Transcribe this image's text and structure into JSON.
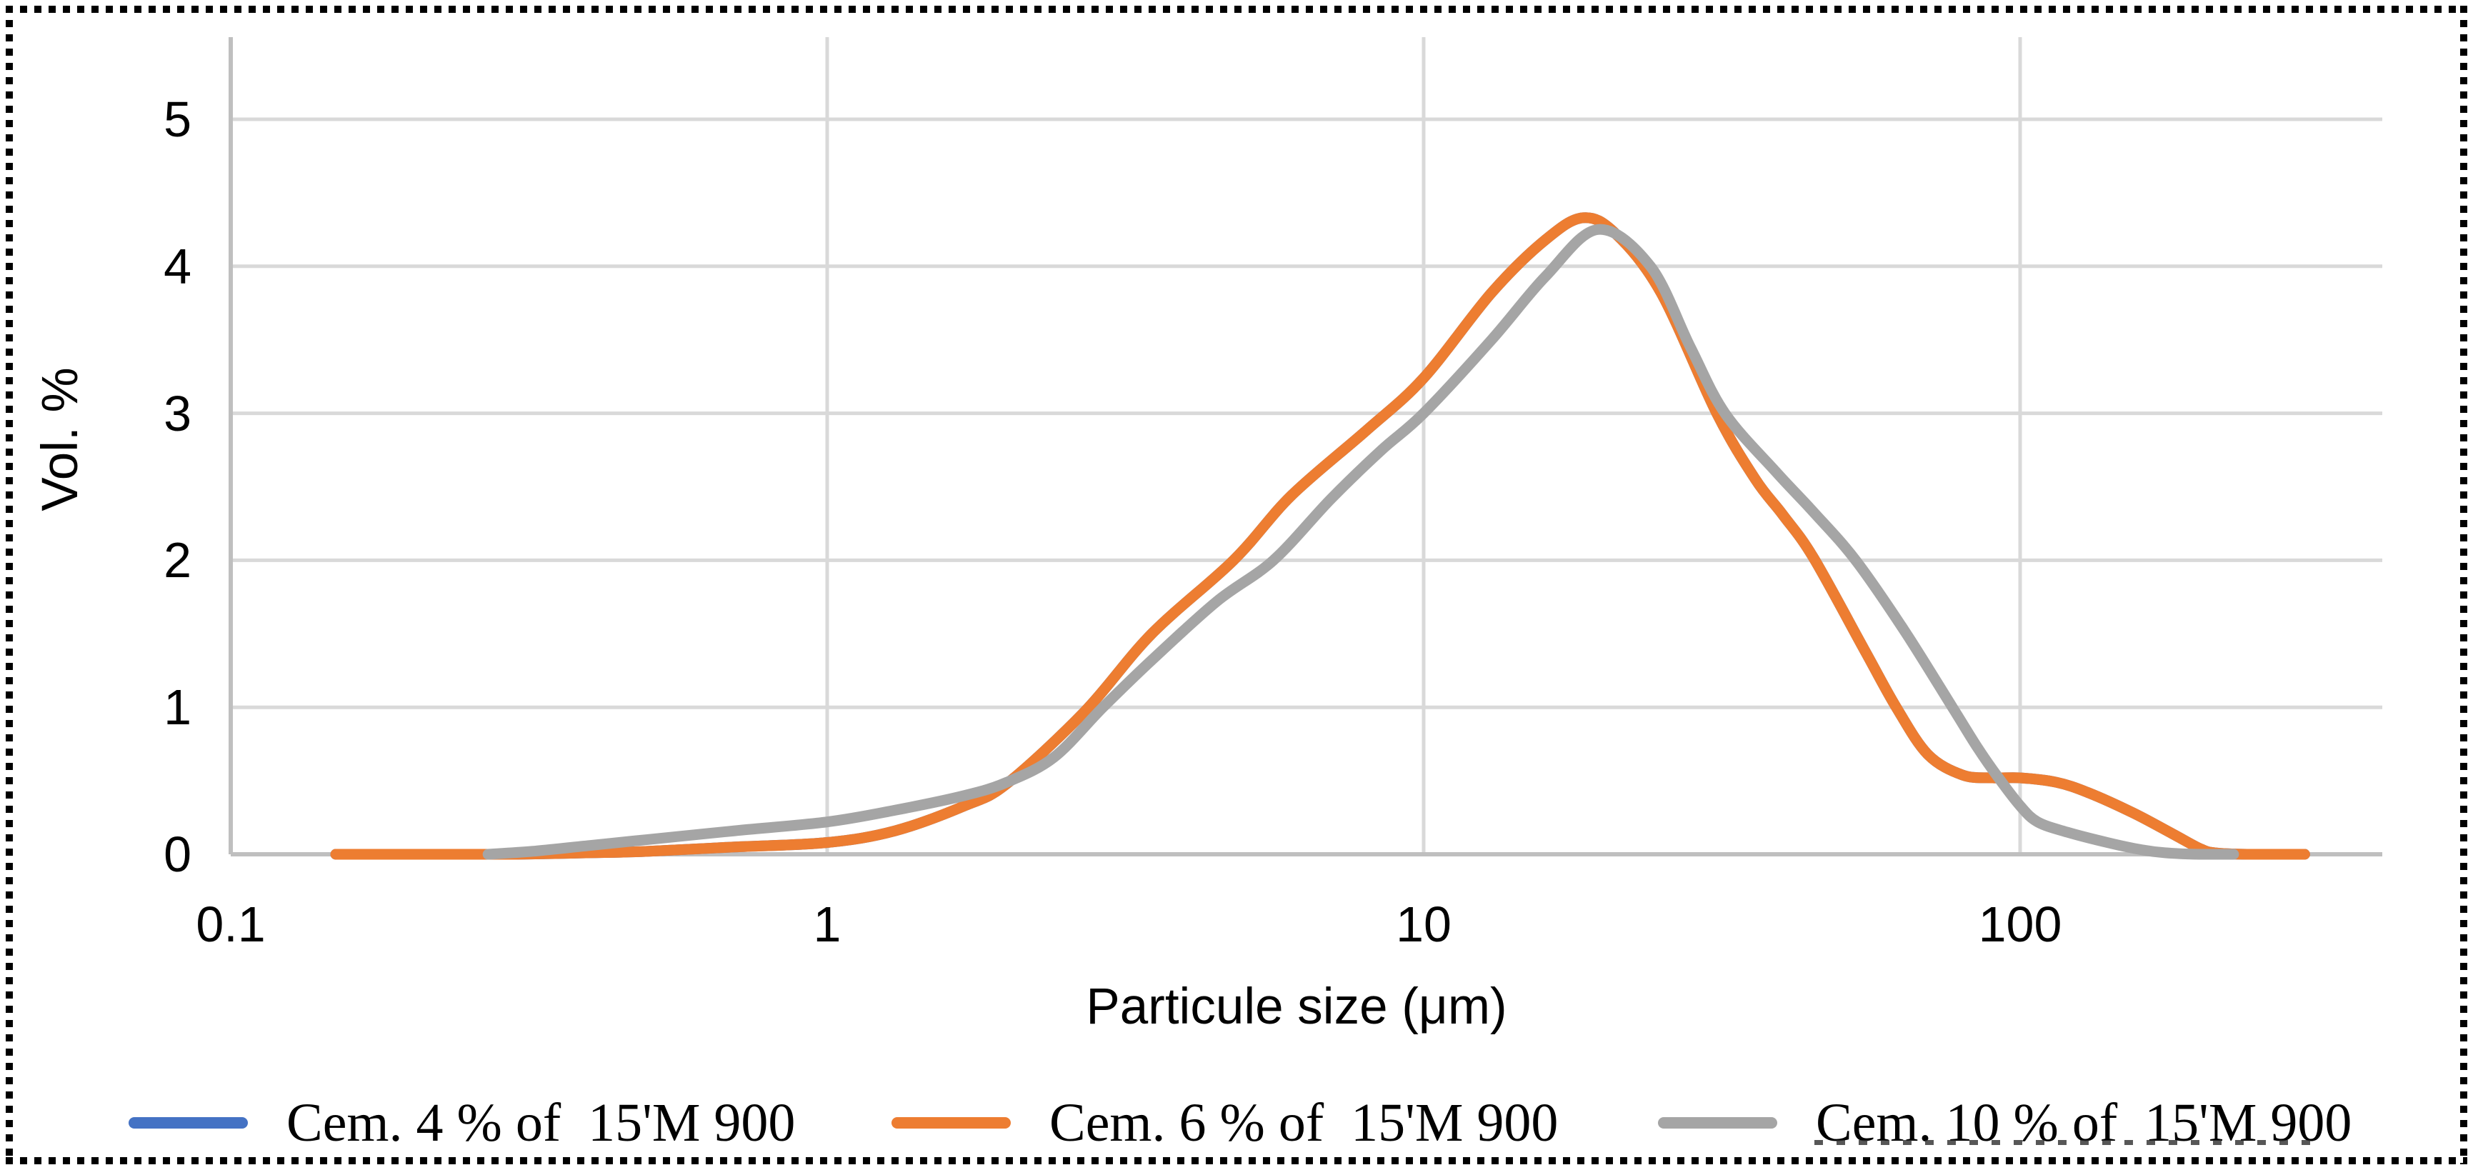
{
  "figure": {
    "y_axis_title": "Vol. %",
    "x_axis_title": "Particule size (μm)",
    "y_tick_labels": [
      "0",
      "1",
      "2",
      "3",
      "4",
      "5"
    ],
    "x_tick_labels": [
      "0.1",
      "1",
      "10",
      "100"
    ],
    "legend": [
      {
        "label": "Cem. 4 % of  15'M 900",
        "color": "#4472C4"
      },
      {
        "label": "Cem. 6 % of  15'M 900",
        "color": "#ED7D31"
      },
      {
        "label": "Cem. 10 % of  15'M 900",
        "color": "#A5A5A5"
      }
    ]
  },
  "chart_data": {
    "type": "line",
    "title": "",
    "xlabel": "Particule size (μm)",
    "ylabel": "Vol. %",
    "x_scale": "log",
    "xlim": [
      0.1,
      400
    ],
    "ylim": [
      0,
      5.6
    ],
    "x_ticks": [
      0.1,
      1,
      10,
      100
    ],
    "y_ticks": [
      0,
      1,
      2,
      3,
      4,
      5
    ],
    "grid": true,
    "legend_position": "bottom",
    "colors": {
      "gridline": "#D9D9D9",
      "axis_line": "#BFBFBF",
      "text": "#000000"
    },
    "series": [
      {
        "name": "Cem. 4 % of 15'M 900",
        "color": "#4472C4",
        "note": "coincides with Cem. 6 % curve and is fully hidden beneath it",
        "points": [
          [
            0.15,
            0
          ],
          [
            0.2,
            0
          ],
          [
            0.25,
            0
          ],
          [
            0.3,
            0
          ],
          [
            0.4,
            0.01
          ],
          [
            0.5,
            0.02
          ],
          [
            0.7,
            0.05
          ],
          [
            1,
            0.08
          ],
          [
            1.3,
            0.16
          ],
          [
            1.7,
            0.33
          ],
          [
            2,
            0.48
          ],
          [
            2.7,
            0.97
          ],
          [
            3.5,
            1.5
          ],
          [
            4.8,
            2.0
          ],
          [
            6,
            2.44
          ],
          [
            8,
            2.88
          ],
          [
            10,
            3.24
          ],
          [
            13,
            3.82
          ],
          [
            16,
            4.18
          ],
          [
            18.5,
            4.33
          ],
          [
            21,
            4.22
          ],
          [
            25,
            3.82
          ],
          [
            31,
            3.0
          ],
          [
            36,
            2.55
          ],
          [
            40,
            2.31
          ],
          [
            45,
            2.02
          ],
          [
            55,
            1.38
          ],
          [
            62,
            1.0
          ],
          [
            70,
            0.68
          ],
          [
            80,
            0.54
          ],
          [
            90,
            0.52
          ],
          [
            100,
            0.52
          ],
          [
            115,
            0.49
          ],
          [
            130,
            0.42
          ],
          [
            155,
            0.28
          ],
          [
            180,
            0.14
          ],
          [
            200,
            0.04
          ],
          [
            212,
            0.01
          ],
          [
            240,
            0
          ],
          [
            300,
            0
          ]
        ]
      },
      {
        "name": "Cem. 6 % of 15'M 900",
        "color": "#ED7D31",
        "points": [
          [
            0.15,
            0
          ],
          [
            0.2,
            0
          ],
          [
            0.25,
            0
          ],
          [
            0.3,
            0
          ],
          [
            0.4,
            0.01
          ],
          [
            0.5,
            0.02
          ],
          [
            0.7,
            0.05
          ],
          [
            1,
            0.08
          ],
          [
            1.3,
            0.16
          ],
          [
            1.7,
            0.33
          ],
          [
            2,
            0.48
          ],
          [
            2.7,
            0.97
          ],
          [
            3.5,
            1.5
          ],
          [
            4.8,
            2.0
          ],
          [
            6,
            2.44
          ],
          [
            8,
            2.88
          ],
          [
            10,
            3.24
          ],
          [
            13,
            3.82
          ],
          [
            16,
            4.18
          ],
          [
            18.5,
            4.33
          ],
          [
            21,
            4.22
          ],
          [
            25,
            3.82
          ],
          [
            31,
            3.0
          ],
          [
            36,
            2.55
          ],
          [
            40,
            2.31
          ],
          [
            45,
            2.02
          ],
          [
            55,
            1.38
          ],
          [
            62,
            1.0
          ],
          [
            70,
            0.68
          ],
          [
            80,
            0.54
          ],
          [
            90,
            0.52
          ],
          [
            100,
            0.52
          ],
          [
            115,
            0.49
          ],
          [
            130,
            0.42
          ],
          [
            155,
            0.28
          ],
          [
            180,
            0.14
          ],
          [
            200,
            0.04
          ],
          [
            212,
            0.01
          ],
          [
            240,
            0
          ],
          [
            300,
            0
          ]
        ]
      },
      {
        "name": "Cem. 10 % of 15'M 900",
        "color": "#A5A5A5",
        "points": [
          [
            0.27,
            0
          ],
          [
            0.32,
            0.02
          ],
          [
            0.4,
            0.06
          ],
          [
            0.5,
            0.1
          ],
          [
            0.7,
            0.16
          ],
          [
            1,
            0.22
          ],
          [
            1.3,
            0.3
          ],
          [
            1.7,
            0.4
          ],
          [
            2,
            0.49
          ],
          [
            2.4,
            0.66
          ],
          [
            2.9,
            1.0
          ],
          [
            3.5,
            1.32
          ],
          [
            4.5,
            1.72
          ],
          [
            5.6,
            2.0
          ],
          [
            7,
            2.42
          ],
          [
            8.5,
            2.75
          ],
          [
            10,
            3.0
          ],
          [
            13,
            3.5
          ],
          [
            16,
            3.93
          ],
          [
            19.6,
            4.25
          ],
          [
            24,
            4.0
          ],
          [
            28,
            3.45
          ],
          [
            32,
            3.0
          ],
          [
            39,
            2.6
          ],
          [
            45,
            2.33
          ],
          [
            53,
            2.0
          ],
          [
            64,
            1.52
          ],
          [
            77,
            1.0
          ],
          [
            85,
            0.72
          ],
          [
            92,
            0.52
          ],
          [
            100,
            0.33
          ],
          [
            107,
            0.22
          ],
          [
            120,
            0.15
          ],
          [
            140,
            0.08
          ],
          [
            160,
            0.03
          ],
          [
            175,
            0.01
          ],
          [
            200,
            0
          ],
          [
            228,
            0
          ]
        ]
      }
    ]
  }
}
